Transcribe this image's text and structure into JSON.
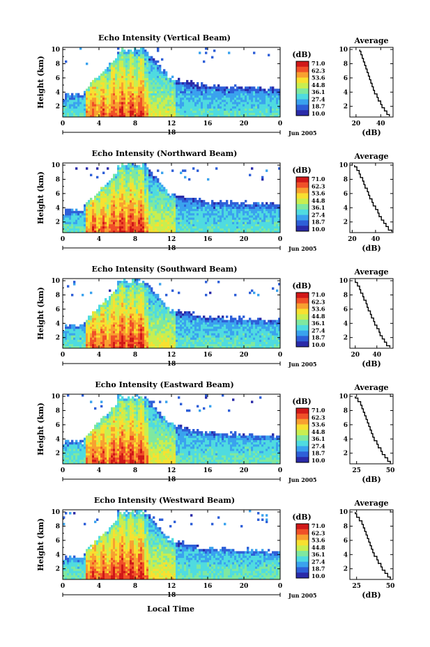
{
  "figure": {
    "xlabel": "Local Time",
    "date_label": "Jun 2005",
    "day_marker": "18",
    "colorbar_unit": "(dB)",
    "colorbar_ticks": [
      "71.0",
      "62.3",
      "53.6",
      "44.8",
      "36.1",
      "27.4",
      "18.7",
      "10.0"
    ],
    "colorbar_colors": [
      "#2a2aa8",
      "#2e5fd8",
      "#3aa2ee",
      "#4fdbe0",
      "#7fe8a0",
      "#c8ee50",
      "#f8e030",
      "#f8a030",
      "#f05028",
      "#d01818"
    ],
    "colorscale_range_db": [
      10.0,
      71.0
    ]
  },
  "chart_data": [
    {
      "type": "heatmap",
      "title": "Echo Intensity (Vertical Beam)",
      "ylabel": "Height (km)",
      "x_ticks": [
        "0",
        "4",
        "8",
        "12",
        "16",
        "20",
        "0"
      ],
      "y_ticks": [
        "2",
        "4",
        "6",
        "8",
        "10"
      ],
      "xlim": [
        0,
        24
      ],
      "ylim": [
        0.5,
        10.3
      ],
      "value_range": [
        10.0,
        71.0
      ]
    },
    {
      "type": "line",
      "title": "Average",
      "xlabel": "(dB)",
      "x_ticks": [
        "20",
        "40"
      ],
      "y_ticks": [
        "2",
        "4",
        "6",
        "8",
        "10"
      ],
      "xlim": [
        15,
        50
      ],
      "ylim": [
        0.5,
        10.3
      ],
      "x": [
        47,
        45,
        43,
        41,
        40,
        38,
        37,
        35,
        34,
        33,
        32,
        31,
        30,
        29,
        28,
        27,
        26,
        25,
        24,
        23
      ],
      "y": [
        0.6,
        1.1,
        1.6,
        2.0,
        2.5,
        3.0,
        3.5,
        4.0,
        4.5,
        5.0,
        5.5,
        6.0,
        6.5,
        7.0,
        7.5,
        8.0,
        8.5,
        9.0,
        9.5,
        10.0
      ]
    },
    {
      "type": "heatmap",
      "title": "Echo Intensity (Northward Beam)",
      "ylabel": "Height (km)",
      "x_ticks": [
        "0",
        "4",
        "8",
        "12",
        "16",
        "20",
        "0"
      ],
      "y_ticks": [
        "2",
        "4",
        "6",
        "8",
        "10"
      ],
      "xlim": [
        0,
        24
      ],
      "ylim": [
        0.5,
        10.3
      ],
      "value_range": [
        10.0,
        71.0
      ]
    },
    {
      "type": "line",
      "title": "Average",
      "xlabel": "(dB)",
      "x_ticks": [
        "20",
        "40"
      ],
      "y_ticks": [
        "2",
        "4",
        "6",
        "8",
        "10"
      ],
      "xlim": [
        18,
        55
      ],
      "ylim": [
        0.5,
        10.3
      ],
      "x": [
        54,
        51,
        49,
        47,
        45,
        43,
        42,
        40,
        38,
        37,
        35,
        34,
        33,
        31,
        30,
        29,
        27,
        26,
        24,
        22
      ],
      "y": [
        0.6,
        1.1,
        1.6,
        2.0,
        2.5,
        3.0,
        3.5,
        4.0,
        4.5,
        5.0,
        5.5,
        6.0,
        6.5,
        7.0,
        7.5,
        8.0,
        8.5,
        9.0,
        9.5,
        10.0
      ]
    },
    {
      "type": "heatmap",
      "title": "Echo Intensity (Southward Beam)",
      "ylabel": "Height (km)",
      "x_ticks": [
        "0",
        "4",
        "8",
        "12",
        "16",
        "20",
        "0"
      ],
      "y_ticks": [
        "2",
        "4",
        "6",
        "8",
        "10"
      ],
      "xlim": [
        0,
        24
      ],
      "ylim": [
        0.5,
        10.3
      ],
      "value_range": [
        10.0,
        71.0
      ]
    },
    {
      "type": "line",
      "title": "Average",
      "xlabel": "(dB)",
      "x_ticks": [
        "20",
        "40"
      ],
      "y_ticks": [
        "2",
        "4",
        "6",
        "8",
        "10"
      ],
      "xlim": [
        15,
        55
      ],
      "ylim": [
        0.5,
        10.3
      ],
      "x": [
        52,
        49,
        47,
        45,
        43,
        42,
        40,
        38,
        37,
        35,
        34,
        32,
        31,
        30,
        28,
        27,
        25,
        24,
        22,
        20
      ],
      "y": [
        0.6,
        1.1,
        1.6,
        2.0,
        2.5,
        3.0,
        3.5,
        4.0,
        4.5,
        5.0,
        5.5,
        6.0,
        6.5,
        7.0,
        7.5,
        8.0,
        8.5,
        9.0,
        9.5,
        10.0
      ]
    },
    {
      "type": "heatmap",
      "title": "Echo Intensity (Eastward Beam)",
      "ylabel": "Height (km)",
      "x_ticks": [
        "0",
        "4",
        "8",
        "12",
        "16",
        "20",
        "0"
      ],
      "y_ticks": [
        "2",
        "4",
        "6",
        "8",
        "10"
      ],
      "xlim": [
        0,
        24
      ],
      "ylim": [
        0.5,
        10.3
      ],
      "value_range": [
        10.0,
        71.0
      ]
    },
    {
      "type": "line",
      "title": "Average",
      "xlabel": "(dB)",
      "x_ticks": [
        "25",
        "50"
      ],
      "y_ticks": [
        "2",
        "4",
        "6",
        "8",
        "10"
      ],
      "xlim": [
        20,
        52
      ],
      "ylim": [
        0.5,
        10.3
      ],
      "x": [
        50,
        48,
        46,
        44,
        43,
        41,
        40,
        38,
        37,
        36,
        35,
        34,
        33,
        32,
        31,
        30,
        29,
        28,
        26,
        24
      ],
      "y": [
        0.6,
        1.1,
        1.6,
        2.0,
        2.5,
        3.0,
        3.5,
        4.0,
        4.5,
        5.0,
        5.5,
        6.0,
        6.5,
        7.0,
        7.5,
        8.0,
        8.5,
        9.0,
        9.5,
        10.0
      ]
    },
    {
      "type": "heatmap",
      "title": "Echo Intensity (Westward Beam)",
      "ylabel": "Height (km)",
      "x_ticks": [
        "0",
        "4",
        "8",
        "12",
        "16",
        "20",
        "0"
      ],
      "y_ticks": [
        "2",
        "4",
        "6",
        "8",
        "10"
      ],
      "xlim": [
        0,
        24
      ],
      "ylim": [
        0.5,
        10.3
      ],
      "value_range": [
        10.0,
        71.0
      ]
    },
    {
      "type": "line",
      "title": "Average",
      "xlabel": "(dB)",
      "x_ticks": [
        "25",
        "50"
      ],
      "y_ticks": [
        "2",
        "4",
        "6",
        "8",
        "10"
      ],
      "xlim": [
        20,
        52
      ],
      "ylim": [
        0.5,
        10.3
      ],
      "x": [
        50,
        48,
        46,
        44,
        43,
        41,
        40,
        38,
        37,
        36,
        35,
        34,
        33,
        32,
        31,
        30,
        29,
        27,
        25,
        24
      ],
      "y": [
        0.6,
        1.1,
        1.6,
        2.0,
        2.5,
        3.0,
        3.5,
        4.0,
        4.5,
        5.0,
        5.5,
        6.0,
        6.5,
        7.0,
        7.5,
        8.0,
        8.5,
        9.0,
        9.5,
        10.0
      ]
    }
  ]
}
